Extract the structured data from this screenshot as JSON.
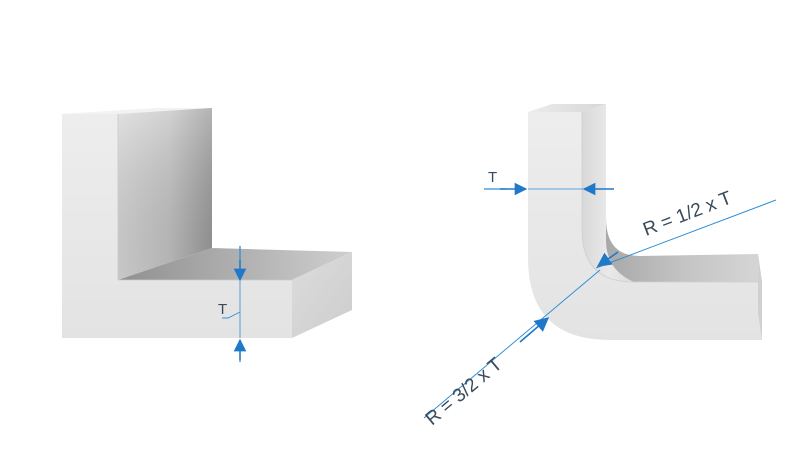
{
  "labels": {
    "thickness_left": "T",
    "thickness_right": "T",
    "inner_radius": "R = 1/2 x T",
    "outer_radius": "R = 3/2 x T"
  },
  "colors": {
    "dimension_line": "#2f8fd6",
    "arrow": "#1f78c8",
    "label_text": "#3a4a5a"
  }
}
